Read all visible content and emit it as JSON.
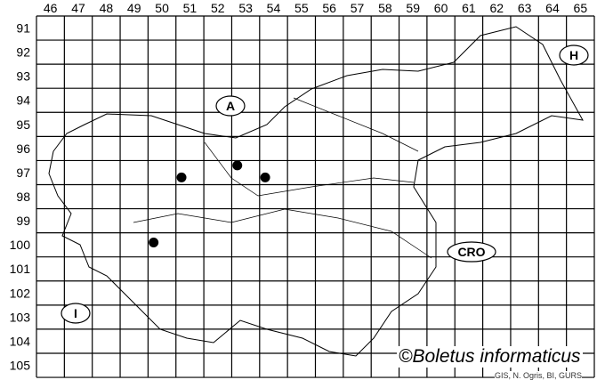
{
  "map": {
    "columns": [
      "46",
      "47",
      "48",
      "49",
      "50",
      "51",
      "52",
      "53",
      "54",
      "55",
      "56",
      "57",
      "58",
      "59",
      "60",
      "61",
      "62",
      "63",
      "64",
      "65"
    ],
    "rows": [
      "91",
      "92",
      "93",
      "94",
      "95",
      "96",
      "97",
      "98",
      "99",
      "100",
      "101",
      "102",
      "103",
      "104",
      "105"
    ],
    "records": [
      {
        "col": "51",
        "row": "97"
      },
      {
        "col": "53",
        "row": "97"
      },
      {
        "col": "54",
        "row": "97"
      },
      {
        "col": "50",
        "row": "100"
      }
    ],
    "neighbour_labels": [
      {
        "id": "austria",
        "text": "A"
      },
      {
        "id": "hungary",
        "text": "H"
      },
      {
        "id": "croatia",
        "text": "CRO"
      },
      {
        "id": "italy",
        "text": "I"
      }
    ],
    "marker_color": "#000000"
  },
  "credit": "©Boletus informaticus",
  "source": "GIS, N. Ogris, BI, GURS"
}
